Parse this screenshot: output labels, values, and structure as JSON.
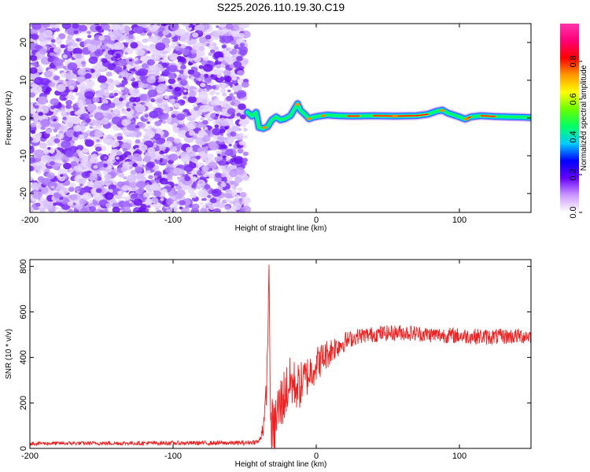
{
  "chart_data": [
    {
      "type": "heatmap",
      "title": "S225.2026.110.19.30.C19",
      "xlabel": "Height of straight line (km)",
      "ylabel": "Frequency (Hz)",
      "xlim": [
        -200,
        150
      ],
      "ylim": [
        -25,
        25
      ],
      "x_ticks": [
        -200,
        -100,
        0,
        100
      ],
      "x_tick_labels": [
        "-200",
        "-100",
        "0",
        "100"
      ],
      "y_ticks": [
        20,
        10,
        0,
        -10,
        -20
      ],
      "y_tick_labels": [
        "20",
        "10",
        "0",
        "-10",
        "-20"
      ],
      "noise_region": [
        -200,
        -52
      ],
      "ridge": [
        {
          "x": -48,
          "y": 1.5
        },
        {
          "x": -45,
          "y": 0.5
        },
        {
          "x": -42,
          "y": 1.5
        },
        {
          "x": -40,
          "y": -2.5
        },
        {
          "x": -37,
          "y": -2.8
        },
        {
          "x": -34,
          "y": -2.3
        },
        {
          "x": -31,
          "y": -0.5
        },
        {
          "x": -28,
          "y": 0.3
        },
        {
          "x": -25,
          "y": -0.5
        },
        {
          "x": -22,
          "y": -0.2
        },
        {
          "x": -18,
          "y": 0.6
        },
        {
          "x": -15,
          "y": 2.5
        },
        {
          "x": -13,
          "y": 3.8
        },
        {
          "x": -11,
          "y": 2.0
        },
        {
          "x": -8,
          "y": 1.0
        },
        {
          "x": -5,
          "y": -0.2
        },
        {
          "x": -2,
          "y": 0.2
        },
        {
          "x": 2,
          "y": 0.5
        },
        {
          "x": 8,
          "y": 0.8
        },
        {
          "x": 15,
          "y": 0.6
        },
        {
          "x": 25,
          "y": 0.5
        },
        {
          "x": 40,
          "y": 0.6
        },
        {
          "x": 55,
          "y": 0.5
        },
        {
          "x": 70,
          "y": 0.6
        },
        {
          "x": 78,
          "y": 1.0
        },
        {
          "x": 84,
          "y": 1.8
        },
        {
          "x": 88,
          "y": 2.1
        },
        {
          "x": 92,
          "y": 1.3
        },
        {
          "x": 96,
          "y": 0.8
        },
        {
          "x": 100,
          "y": 0.3
        },
        {
          "x": 104,
          "y": -0.3
        },
        {
          "x": 108,
          "y": 0.3
        },
        {
          "x": 115,
          "y": 0.6
        },
        {
          "x": 125,
          "y": 0.4
        },
        {
          "x": 135,
          "y": 0.3
        },
        {
          "x": 145,
          "y": 0.2
        },
        {
          "x": 150,
          "y": 0.1
        }
      ],
      "colorbar": {
        "label": "Normalized spectral amplitude",
        "ticks": [
          0.0,
          0.2,
          0.4,
          0.6,
          0.8
        ],
        "tick_labels": [
          "0.0",
          "0.2",
          "0.4",
          "0.6",
          "0.8"
        ],
        "range": [
          0,
          1
        ],
        "colors": [
          "#ffffff",
          "#cc99ff",
          "#6600ff",
          "#0000ff",
          "#00ccff",
          "#00ff66",
          "#66ff00",
          "#ffff00",
          "#ff9900",
          "#ff0000",
          "#ff0077",
          "#ff33aa"
        ]
      }
    },
    {
      "type": "line",
      "xlabel": "Height of straight line (km)",
      "ylabel": "SNR (10 * v/v)",
      "xlim": [
        -200,
        150
      ],
      "ylim": [
        0,
        830
      ],
      "x_ticks": [
        -200,
        -100,
        0,
        100
      ],
      "x_tick_labels": [
        "-200",
        "-100",
        "0",
        "100"
      ],
      "y_ticks": [
        0,
        200,
        400,
        600,
        800
      ],
      "y_tick_labels": [
        "0",
        "200",
        "400",
        "600",
        "800"
      ],
      "color": "#ee2222",
      "trend": [
        {
          "x": -200,
          "y": 22
        },
        {
          "x": -50,
          "y": 24
        },
        {
          "x": -40,
          "y": 30
        },
        {
          "x": -36,
          "y": 120
        },
        {
          "x": -34,
          "y": 380
        },
        {
          "x": -33,
          "y": 830
        },
        {
          "x": -32,
          "y": 150
        },
        {
          "x": -30,
          "y": 60
        },
        {
          "x": -27,
          "y": 160
        },
        {
          "x": -22,
          "y": 240
        },
        {
          "x": -18,
          "y": 290
        },
        {
          "x": -12,
          "y": 270
        },
        {
          "x": -5,
          "y": 330
        },
        {
          "x": 0,
          "y": 370
        },
        {
          "x": 5,
          "y": 400
        },
        {
          "x": 12,
          "y": 440
        },
        {
          "x": 20,
          "y": 470
        },
        {
          "x": 30,
          "y": 495
        },
        {
          "x": 45,
          "y": 505
        },
        {
          "x": 60,
          "y": 510
        },
        {
          "x": 80,
          "y": 500
        },
        {
          "x": 100,
          "y": 495
        },
        {
          "x": 120,
          "y": 490
        },
        {
          "x": 150,
          "y": 495
        }
      ],
      "noise_amplitude": [
        {
          "x": -200,
          "a": 8
        },
        {
          "x": -40,
          "a": 10
        },
        {
          "x": -30,
          "a": 140
        },
        {
          "x": 0,
          "a": 80
        },
        {
          "x": 25,
          "a": 35
        },
        {
          "x": 150,
          "a": 35
        }
      ]
    }
  ]
}
